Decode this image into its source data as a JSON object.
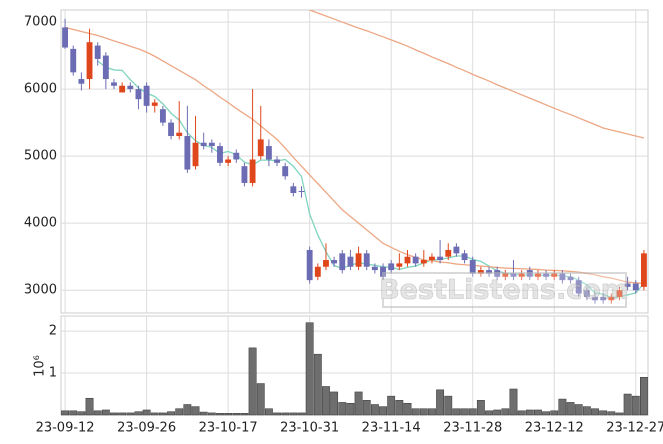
{
  "chart_data": {
    "type": "candlestick",
    "categories": [
      "23-09-12",
      null,
      null,
      null,
      null,
      null,
      null,
      null,
      null,
      null,
      "23-09-26",
      null,
      null,
      null,
      null,
      null,
      null,
      null,
      null,
      null,
      "23-10-17",
      null,
      null,
      null,
      null,
      null,
      null,
      null,
      null,
      null,
      "23-10-31",
      null,
      null,
      null,
      null,
      null,
      null,
      null,
      null,
      null,
      "23-11-14",
      null,
      null,
      null,
      null,
      null,
      null,
      null,
      null,
      null,
      "23-11-28",
      null,
      null,
      null,
      null,
      null,
      null,
      null,
      null,
      null,
      "23-12-12",
      null,
      null,
      null,
      null,
      null,
      null,
      null,
      null,
      null,
      "23-12-27",
      null
    ],
    "open": [
      6920,
      6600,
      6150,
      6150,
      6650,
      6500,
      6100,
      5950,
      6050,
      6000,
      6050,
      5750,
      5700,
      5500,
      5300,
      5300,
      4850,
      5200,
      5200,
      5150,
      4900,
      5050,
      4850,
      4600,
      5000,
      5150,
      4950,
      4850,
      4550,
      4480,
      3600,
      3200,
      3350,
      3450,
      3550,
      3500,
      3350,
      3550,
      3350,
      3350,
      3400,
      3350,
      3400,
      3500,
      3400,
      3450,
      3500,
      3500,
      3650,
      3550,
      3450,
      3250,
      3300,
      3300,
      3200,
      3250,
      3200,
      3300,
      3200,
      3250,
      3200,
      3250,
      3200,
      3150,
      3000,
      2900,
      2900,
      2850,
      2900,
      3100,
      3100,
      3050
    ],
    "high": [
      7050,
      6650,
      6250,
      6900,
      6700,
      6550,
      6150,
      6100,
      6100,
      6050,
      6100,
      5850,
      5750,
      5550,
      5820,
      5750,
      5600,
      5350,
      5250,
      5200,
      5000,
      5100,
      4900,
      6000,
      5750,
      5250,
      5000,
      4900,
      4600,
      4550,
      3650,
      3400,
      3700,
      3500,
      3600,
      3600,
      3650,
      3600,
      3400,
      3400,
      3450,
      3550,
      3600,
      3550,
      3600,
      3550,
      3750,
      3700,
      3700,
      3600,
      3500,
      3350,
      3350,
      3350,
      3300,
      3450,
      3300,
      3350,
      3300,
      3300,
      3300,
      3300,
      3250,
      3200,
      3050,
      2950,
      2950,
      2950,
      3050,
      3200,
      3150,
      3600
    ],
    "low": [
      6600,
      6200,
      5980,
      6000,
      6350,
      6000,
      6000,
      5950,
      5950,
      5700,
      5650,
      5650,
      5450,
      5250,
      5250,
      4750,
      4800,
      5100,
      5050,
      4850,
      4850,
      4900,
      4550,
      4550,
      4950,
      4850,
      4850,
      4650,
      4400,
      4380,
      3100,
      3150,
      3300,
      3350,
      3250,
      3300,
      3300,
      3300,
      3250,
      3150,
      3250,
      3300,
      3350,
      3350,
      3350,
      3400,
      3400,
      3450,
      3500,
      3400,
      3200,
      3200,
      3200,
      3150,
      3150,
      3150,
      3150,
      3150,
      3150,
      3150,
      3150,
      3100,
      3100,
      2900,
      2850,
      2800,
      2800,
      2800,
      2850,
      3000,
      2950,
      3000
    ],
    "close": [
      6620,
      6250,
      6080,
      6700,
      6450,
      6150,
      6050,
      6050,
      6000,
      5850,
      5750,
      5800,
      5500,
      5300,
      5350,
      4800,
      5200,
      5150,
      5150,
      4900,
      4950,
      4950,
      4600,
      4950,
      5250,
      4950,
      4900,
      4700,
      4450,
      4470,
      3150,
      3350,
      3450,
      3400,
      3300,
      3350,
      3550,
      3350,
      3300,
      3200,
      3300,
      3400,
      3500,
      3400,
      3450,
      3500,
      3450,
      3600,
      3550,
      3450,
      3250,
      3300,
      3250,
      3200,
      3250,
      3200,
      3250,
      3200,
      3250,
      3200,
      3250,
      3150,
      3150,
      2950,
      2900,
      2850,
      2850,
      2900,
      3000,
      3050,
      3000,
      3550
    ],
    "up_color": "#e0461c",
    "down_color": "#6c6cb4",
    "ylim": [
      2660,
      7180
    ],
    "yticks": [
      3000,
      4000,
      5000,
      6000,
      7000
    ],
    "grid": true,
    "series": [
      {
        "color": "#7fd4bf",
        "values": [
          null,
          null,
          null,
          null,
          6420,
          6326,
          6286,
          6280,
          6140,
          6020,
          5940,
          5890,
          5780,
          5640,
          5540,
          5350,
          5230,
          5160,
          5130,
          5040,
          5070,
          5020,
          4910,
          4870,
          4940,
          4940,
          4930,
          4950,
          4850,
          4694,
          4134,
          3824,
          3574,
          3364,
          3330,
          3370,
          3410,
          3390,
          3370,
          3350,
          3340,
          3310,
          3340,
          3360,
          3410,
          3450,
          3460,
          3480,
          3510,
          3510,
          3460,
          3430,
          3360,
          3290,
          3250,
          3240,
          3230,
          3220,
          3230,
          3220,
          3230,
          3210,
          3200,
          3150,
          3080,
          2960,
          2940,
          2890,
          2900,
          2930,
          2960,
          3100
        ]
      },
      {
        "color": "#eda784",
        "values": [
          6920,
          6890,
          6860,
          6830,
          6800,
          6760,
          6720,
          6680,
          6640,
          6600,
          6550,
          6490,
          6420,
          6350,
          6280,
          6210,
          6140,
          6050,
          5970,
          5880,
          5800,
          5710,
          5630,
          5550,
          5450,
          5350,
          5250,
          5120,
          4980,
          4850,
          4720,
          4590,
          4460,
          4330,
          4200,
          4100,
          4000,
          3900,
          3800,
          3700,
          3640,
          3580,
          3530,
          3490,
          3450,
          3440,
          3420,
          3410,
          3390,
          3380,
          3370,
          3360,
          3350,
          3340,
          3330,
          3325,
          3320,
          3315,
          3310,
          3300,
          3295,
          3290,
          3280,
          3270,
          3250,
          3230,
          3200,
          3180,
          3150,
          3120,
          3110,
          3100
        ]
      },
      {
        "color": "#eda784",
        "values": [
          null,
          null,
          null,
          null,
          null,
          null,
          null,
          null,
          null,
          null,
          null,
          null,
          null,
          null,
          null,
          null,
          null,
          null,
          null,
          null,
          null,
          null,
          null,
          null,
          null,
          null,
          null,
          null,
          null,
          null,
          7180,
          7135,
          7090,
          7045,
          7000,
          6955,
          6910,
          6870,
          6825,
          6780,
          6735,
          6690,
          6640,
          6585,
          6535,
          6480,
          6430,
          6380,
          6325,
          6275,
          6220,
          6170,
          6120,
          6065,
          6015,
          5965,
          5915,
          5865,
          5815,
          5765,
          5715,
          5665,
          5620,
          5570,
          5520,
          5470,
          5420,
          5390,
          5360,
          5330,
          5300,
          5270
        ]
      }
    ],
    "volume": {
      "label": "10⁶",
      "color": "#6e6e6e",
      "ylim": [
        0,
        2.36
      ],
      "yticks": [
        1,
        2
      ],
      "values": [
        0.1,
        0.1,
        0.08,
        0.4,
        0.1,
        0.12,
        0.05,
        0.05,
        0.05,
        0.08,
        0.12,
        0.05,
        0.05,
        0.08,
        0.15,
        0.25,
        0.2,
        0.07,
        0.05,
        0.04,
        0.04,
        0.04,
        0.04,
        1.6,
        0.75,
        0.15,
        0.05,
        0.05,
        0.05,
        0.05,
        2.2,
        1.45,
        0.68,
        0.55,
        0.3,
        0.28,
        0.55,
        0.35,
        0.25,
        0.2,
        0.45,
        0.35,
        0.28,
        0.15,
        0.15,
        0.15,
        0.6,
        0.45,
        0.15,
        0.15,
        0.15,
        0.35,
        0.1,
        0.12,
        0.15,
        0.62,
        0.1,
        0.12,
        0.12,
        0.08,
        0.1,
        0.38,
        0.3,
        0.25,
        0.2,
        0.15,
        0.1,
        0.08,
        0.05,
        0.5,
        0.45,
        0.9
      ]
    },
    "watermark": "BestListens.com"
  }
}
